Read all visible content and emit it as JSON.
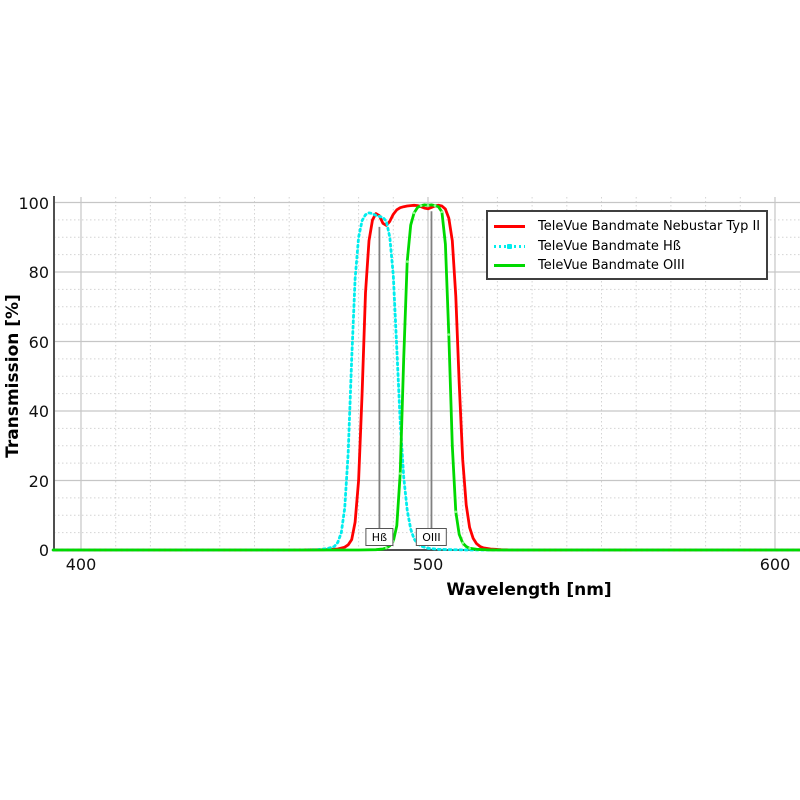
{
  "chart_data": {
    "type": "line",
    "title": "",
    "xlabel": "Wavelength [nm]",
    "ylabel": "Transmission [%]",
    "xlim": [
      392,
      608
    ],
    "ylim": [
      0,
      100
    ],
    "x_major_ticks": [
      400,
      500,
      600
    ],
    "x_minor_step_nm": 10,
    "y_major_ticks": [
      0,
      20,
      40,
      60,
      80,
      100
    ],
    "y_minor_step": 5,
    "grid": "major solid gray, minor dotted light gray",
    "legend_position": "top-right-inside",
    "series": [
      {
        "name": "TeleVue Bandmate Nebustar Typ II",
        "color": "#ff0000",
        "style": "solid",
        "points": [
          [
            392,
            0
          ],
          [
            460,
            0
          ],
          [
            470,
            0.1
          ],
          [
            474,
            0.3
          ],
          [
            476,
            0.8
          ],
          [
            477,
            1.5
          ],
          [
            478,
            3
          ],
          [
            479,
            8
          ],
          [
            480,
            20
          ],
          [
            481,
            45
          ],
          [
            482,
            74
          ],
          [
            483,
            89
          ],
          [
            484,
            95
          ],
          [
            485,
            96.8
          ],
          [
            486,
            96.2
          ],
          [
            487,
            94
          ],
          [
            488,
            93.4
          ],
          [
            489,
            94.6
          ],
          [
            490,
            96.6
          ],
          [
            491,
            97.9
          ],
          [
            492,
            98.5
          ],
          [
            493,
            98.8
          ],
          [
            494,
            99
          ],
          [
            495,
            99.1
          ],
          [
            496,
            99.2
          ],
          [
            497,
            99.1
          ],
          [
            498,
            98.8
          ],
          [
            499,
            98.4
          ],
          [
            500,
            98.2
          ],
          [
            501,
            98.6
          ],
          [
            502,
            99
          ],
          [
            503,
            99.2
          ],
          [
            504,
            99
          ],
          [
            505,
            98.1
          ],
          [
            506,
            95.5
          ],
          [
            507,
            89
          ],
          [
            508,
            73
          ],
          [
            509,
            48
          ],
          [
            510,
            26
          ],
          [
            511,
            13
          ],
          [
            512,
            6.5
          ],
          [
            513,
            3.4
          ],
          [
            514,
            1.8
          ],
          [
            515,
            1
          ],
          [
            516,
            0.6
          ],
          [
            518,
            0.3
          ],
          [
            521,
            0.1
          ],
          [
            525,
            0
          ],
          [
            608,
            0
          ]
        ]
      },
      {
        "name": "TeleVue Bandmate Hß",
        "color": "#00eded",
        "style": "dotted",
        "points": [
          [
            392,
            0
          ],
          [
            462,
            0
          ],
          [
            468,
            0.1
          ],
          [
            471,
            0.4
          ],
          [
            473,
            1
          ],
          [
            474,
            2.2
          ],
          [
            475,
            5
          ],
          [
            476,
            12
          ],
          [
            477,
            28
          ],
          [
            478,
            55
          ],
          [
            479,
            78
          ],
          [
            480,
            90
          ],
          [
            481,
            94.8
          ],
          [
            482,
            96.5
          ],
          [
            483,
            97
          ],
          [
            484,
            96.8
          ],
          [
            485,
            96.3
          ],
          [
            486,
            96
          ],
          [
            487,
            95.7
          ],
          [
            488,
            94.6
          ],
          [
            489,
            90
          ],
          [
            490,
            79
          ],
          [
            491,
            58
          ],
          [
            492,
            37
          ],
          [
            493,
            21
          ],
          [
            494,
            11.5
          ],
          [
            495,
            6
          ],
          [
            496,
            3.2
          ],
          [
            497,
            1.8
          ],
          [
            498,
            1.1
          ],
          [
            500,
            0.5
          ],
          [
            503,
            0.2
          ],
          [
            507,
            0.1
          ],
          [
            512,
            0
          ],
          [
            608,
            0
          ]
        ]
      },
      {
        "name": "TeleVue Bandmate OIII",
        "color": "#00d900",
        "style": "solid",
        "marker_color": "#8cff8c",
        "points": [
          [
            392,
            0
          ],
          [
            480,
            0
          ],
          [
            485,
            0.1
          ],
          [
            487,
            0.3
          ],
          [
            488,
            0.6
          ],
          [
            489,
            1.2
          ],
          [
            490,
            2.5
          ],
          [
            491,
            7
          ],
          [
            492,
            22
          ],
          [
            493,
            55
          ],
          [
            494,
            83
          ],
          [
            495,
            93.5
          ],
          [
            496,
            97
          ],
          [
            497,
            98.6
          ],
          [
            498,
            99.1
          ],
          [
            499,
            99.3
          ],
          [
            500,
            99.2
          ],
          [
            501,
            99.3
          ],
          [
            502,
            99.1
          ],
          [
            503,
            98.8
          ],
          [
            504,
            97.3
          ],
          [
            505,
            88
          ],
          [
            506,
            62
          ],
          [
            507,
            30
          ],
          [
            508,
            11
          ],
          [
            509,
            4.5
          ],
          [
            510,
            2
          ],
          [
            511,
            1
          ],
          [
            512,
            0.5
          ],
          [
            514,
            0.2
          ],
          [
            518,
            0
          ],
          [
            608,
            0
          ]
        ]
      }
    ],
    "annotations": [
      {
        "label": "Hß",
        "wavelength_nm": 486,
        "line_top_pct": 93
      },
      {
        "label": "OIII",
        "wavelength_nm": 501,
        "line_top_pct": 97.5
      }
    ]
  },
  "colors": {
    "background": "#ffffff",
    "grid_major": "#c6c6c6",
    "grid_minor": "#d4d4d4",
    "axis_line": "#4f4f4f",
    "annotation_line": "#808080",
    "legend_border": "#3f3f3f",
    "text": "#111111"
  }
}
